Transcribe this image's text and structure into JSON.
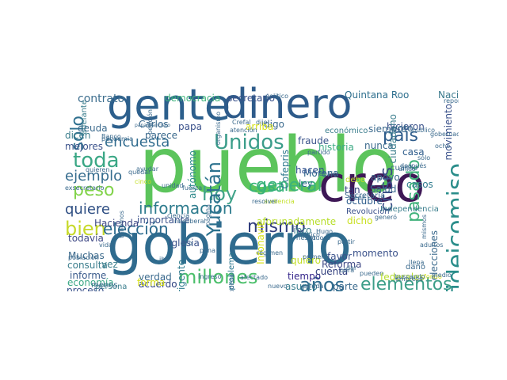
{
  "word_cloud": {
    "words": [
      {
        "id": "pueblo",
        "text": "pueblo",
        "color": "#5cc45c"
      },
      {
        "id": "gobierno",
        "text": "gobierno",
        "color": "#2f6b8e"
      },
      {
        "id": "gente",
        "text": "gente",
        "color": "#2c5f8c"
      },
      {
        "id": "dinero",
        "text": "dinero",
        "color": "#2e5b8a"
      },
      {
        "id": "creo",
        "text": "creo",
        "color": "#3e1856"
      },
      {
        "id": "fideicomiso",
        "text": "fideicomiso",
        "color": "#2a8d8a"
      },
      {
        "id": "millones",
        "text": "millones",
        "color": "#4bbf6b"
      },
      {
        "id": "toda",
        "text": "toda",
        "color": "#3aa785"
      },
      {
        "id": "peso",
        "text": "peso",
        "color": "#82d34b"
      },
      {
        "id": "Unidos",
        "text": "Unidos",
        "color": "#3b9d8a"
      },
      {
        "id": "encuesta",
        "text": "encuesta",
        "color": "#2f6b8e"
      },
      {
        "id": "ejemplo",
        "text": "ejemplo",
        "color": "#356c8e"
      },
      {
        "id": "quiere",
        "text": "quiere",
        "color": "#2e4e83"
      },
      {
        "id": "bien",
        "text": "bien",
        "color": "#c7d92a"
      },
      {
        "id": "eleccion",
        "text": "elección",
        "color": "#2c6b8e"
      },
      {
        "id": "informacion",
        "text": "información",
        "color": "#2f7c8e"
      },
      {
        "id": "hoy",
        "text": "hoy",
        "color": "#41a48a"
      },
      {
        "id": "mismo",
        "text": "mismo",
        "color": "#2f3c7c"
      },
      {
        "id": "general",
        "text": "general",
        "color": "#3bb37b"
      },
      {
        "id": "Yucatan",
        "text": "Yucatán",
        "color": "#2c728e"
      },
      {
        "id": "pais",
        "text": "país",
        "color": "#2f5d8c"
      },
      {
        "id": "crisis",
        "text": "crisis",
        "color": "#3a4a86"
      },
      {
        "id": "pasado",
        "text": "pasado",
        "color": "#40b27b"
      },
      {
        "id": "anos",
        "text": "años",
        "color": "#2f6b8e"
      },
      {
        "id": "elementos",
        "text": "elementos",
        "color": "#3c9e88"
      },
      {
        "id": "solo",
        "text": "solo",
        "color": "#2e6f8e"
      },
      {
        "id": "cosa",
        "text": "cosa",
        "color": "#35b279"
      },
      {
        "id": "hoja",
        "text": "hoja",
        "color": "#2d708e"
      },
      {
        "id": "contrato",
        "text": "contrato",
        "color": "#3d6e8e"
      },
      {
        "id": "democracia",
        "text": "democracia",
        "color": "#3fb47c"
      },
      {
        "id": "secretario",
        "text": "secretario",
        "color": "#3b528b"
      },
      {
        "id": "Morena",
        "text": "Morena",
        "color": "#31688e"
      },
      {
        "id": "QuintanaRoo",
        "text": "Quintana Roo",
        "color": "#2e6f8e"
      },
      {
        "id": "Nacional",
        "text": "Nacional",
        "color": "#3b7a8d"
      },
      {
        "id": "fraude",
        "text": "fraude",
        "color": "#3a538b"
      },
      {
        "id": "historia",
        "text": "historia",
        "color": "#3eaa85"
      },
      {
        "id": "Cofepris",
        "text": "Cofepris",
        "color": "#2f7a8e"
      },
      {
        "id": "autonomo",
        "text": "autónomo",
        "color": "#2f8b8c"
      },
      {
        "id": "Hacienda",
        "text": "Hacienda",
        "color": "#404a86"
      },
      {
        "id": "importante",
        "text": "importante",
        "color": "#3b528b"
      },
      {
        "id": "aforunadamente",
        "text": "aforunadamente",
        "color": "#b7de2a"
      },
      {
        "id": "todavia",
        "text": "todavía",
        "color": "#404a86"
      },
      {
        "id": "Iglesia",
        "text": "Iglesia",
        "color": "#3b528b"
      },
      {
        "id": "Muchas",
        "text": "Muchas",
        "color": "#3e6b8d"
      },
      {
        "id": "consulta",
        "text": "consulta",
        "color": "#3b7e8d"
      },
      {
        "id": "informe",
        "text": "informe",
        "color": "#3b5b8c"
      },
      {
        "id": "economia",
        "text": "economía",
        "color": "#3aa785"
      },
      {
        "id": "proceso",
        "text": "proceso",
        "color": "#3b528b"
      },
      {
        "id": "acuerdo",
        "text": "acuerdo",
        "color": "#2c3f7f"
      },
      {
        "id": "verdad",
        "text": "verdad",
        "color": "#3b6a8d"
      },
      {
        "id": "dirigente",
        "text": "dirigente",
        "color": "#2f7b8e"
      },
      {
        "id": "problema",
        "text": "problema",
        "color": "#2a768e"
      },
      {
        "id": "tiempo",
        "text": "tiempo",
        "color": "#34258a"
      },
      {
        "id": "asunto",
        "text": "asunto",
        "color": "#3a7e8e"
      },
      {
        "id": "cuenta",
        "text": "cuenta",
        "color": "#2f3c7c"
      },
      {
        "id": "Reforma",
        "text": "Reforma",
        "color": "#404a86"
      },
      {
        "id": "favor",
        "text": "favor",
        "color": "#3b528b"
      },
      {
        "id": "libro",
        "text": "libro",
        "color": "#3b7e8d"
      },
      {
        "id": "quiero",
        "text": "quiero",
        "color": "#c2df23"
      },
      {
        "id": "momento",
        "text": "momento",
        "color": "#3b528b"
      },
      {
        "id": "dicho",
        "text": "dicho",
        "color": "#c9e020"
      },
      {
        "id": "tan",
        "text": "tan",
        "color": "#2f3c7c"
      },
      {
        "id": "ley",
        "text": "ley",
        "color": "#2f6b8e"
      },
      {
        "id": "hacen",
        "text": "hacen",
        "color": "#2f4e8e"
      },
      {
        "id": "apoyo",
        "text": "apoyo",
        "color": "#3b6a8d"
      },
      {
        "id": "Salud",
        "text": "Salud",
        "color": "#3b6a8d"
      },
      {
        "id": "casos",
        "text": "casos",
        "color": "#2f7b8e"
      },
      {
        "id": "casa",
        "text": "casa",
        "color": "#2f5d8c"
      },
      {
        "id": "siempre",
        "text": "siempre",
        "color": "#3b6a8d"
      },
      {
        "id": "nunca",
        "text": "nunca",
        "color": "#3b6a8d"
      },
      {
        "id": "octubre",
        "text": "octubre",
        "color": "#2f5d8c"
      },
      {
        "id": "Secretaria",
        "text": "Secretaría",
        "color": "#3b6a8d"
      },
      {
        "id": "Revolucion",
        "text": "Revolución",
        "color": "#3b528b"
      },
      {
        "id": "vez",
        "text": "vez",
        "color": "#3b7e8d"
      },
      {
        "id": "menos",
        "text": "menos",
        "color": "#3b6a8d"
      },
      {
        "id": "persona",
        "text": "persona",
        "color": "#3b7e8d"
      },
      {
        "id": "dicen",
        "text": "dicen",
        "color": "#3b7e8d"
      },
      {
        "id": "mejores",
        "text": "mejores",
        "color": "#3b528b"
      },
      {
        "id": "deuda",
        "text": "deuda",
        "color": "#3b6a8d"
      },
      {
        "id": "Carlos",
        "text": "Carlos",
        "color": "#3b6a8d"
      },
      {
        "id": "papa",
        "text": "papa",
        "color": "#3b528b"
      },
      {
        "id": "parece",
        "text": "parece",
        "color": "#3b6a8d"
      },
      {
        "id": "forma",
        "text": "forma",
        "color": "#d8e219"
      },
      {
        "id": "digo",
        "text": "digo",
        "color": "#3b6a8d"
      },
      {
        "id": "movimiento",
        "text": "movimiento",
        "color": "#3b528b"
      },
      {
        "id": "ciudadano",
        "text": "ciudadano",
        "color": "#3b7e8d"
      },
      {
        "id": "hicieron",
        "text": "hicieron",
        "color": "#3b528b"
      },
      {
        "id": "economico",
        "text": "económico",
        "color": "#3b7e8d"
      },
      {
        "id": "arriba",
        "text": "arriba",
        "color": "#d8e219"
      },
      {
        "id": "voto",
        "text": "voto",
        "color": "#3b6a8d"
      },
      {
        "id": "cuanto",
        "text": "cuanto",
        "color": "#3b6a8d"
      },
      {
        "id": "elecciones",
        "text": "elecciones",
        "color": "#3b6a8d"
      },
      {
        "id": "parte",
        "text": "parte",
        "color": "#3b6a8d"
      },
      {
        "id": "debe",
        "text": "debe",
        "color": "#c2df23"
      },
      {
        "id": "federales",
        "text": "federales",
        "color": "#b7de2a"
      },
      {
        "id": "Infonavit",
        "text": "Infonavit",
        "color": "#d8e219"
      },
      {
        "id": "Independencia",
        "text": "Independencia",
        "color": "#3b7e8d"
      },
      {
        "id": "adelante",
        "text": "adelante",
        "color": "#3b7e8d"
      },
      {
        "id": "Banco",
        "text": "Banco",
        "color": "#3b6a8d"
      },
      {
        "id": "politico",
        "text": "politico",
        "color": "#3b6a8d"
      },
      {
        "id": "cinco",
        "text": "cinco",
        "color": "#c2df23"
      },
      {
        "id": "fuerza",
        "text": "fuerza",
        "color": "#3b6a8d"
      },
      {
        "id": "ayudar",
        "text": "ayudar",
        "color": "#3b6a8d"
      },
      {
        "id": "quieren",
        "text": "quieren",
        "color": "#3b6a8d"
      },
      {
        "id": "exsecretario",
        "text": "exsecretario",
        "color": "#3b6a8d"
      },
      {
        "id": "neoliberal",
        "text": "neoliberal",
        "color": "#3b6a8d"
      },
      {
        "id": "atencion",
        "text": "atención",
        "color": "#3b6a8d"
      },
      {
        "id": "primera",
        "text": "primera",
        "color": "#3b6a8d"
      },
      {
        "id": "cargo",
        "text": "cargo",
        "color": "#3b6a8d"
      },
      {
        "id": "hablando",
        "text": "hablando",
        "color": "#3b6a8d"
      },
      {
        "id": "autoridades",
        "text": "autoridades",
        "color": "#3b6a8d"
      },
      {
        "id": "nuevo",
        "text": "nuevo",
        "color": "#3b6a8d"
      },
      {
        "id": "partido",
        "text": "partido",
        "color": "#3b6a8d"
      },
      {
        "id": "audiencia",
        "text": "audiencia",
        "color": "#c2df23"
      },
      {
        "id": "resolver",
        "text": "resolver",
        "color": "#3b6a8d"
      },
      {
        "id": "riesgo",
        "text": "riesgo",
        "color": "#3b6a8d"
      },
      {
        "id": "gobernador",
        "text": "gobernador",
        "color": "#3b6a8d"
      },
      {
        "id": "publico",
        "text": "publico",
        "color": "#3b6a8d"
      },
      {
        "id": "reportero",
        "text": "reportero",
        "color": "#3b6a8d"
      },
      {
        "id": "despues",
        "text": "después",
        "color": "#3b6a8d"
      },
      {
        "id": "llena",
        "text": "llena",
        "color": "#3b6a8d"
      },
      {
        "id": "dano",
        "text": "daño",
        "color": "#3b6a8d"
      },
      {
        "id": "dar",
        "text": "dar",
        "color": "#3b6a8d"
      },
      {
        "id": "genero",
        "text": "generó",
        "color": "#3b6a8d"
      },
      {
        "id": "viene",
        "text": "viene",
        "color": "#3b6a8d"
      },
      {
        "id": "Hugo",
        "text": "Hugo",
        "color": "#3b6a8d"
      },
      {
        "id": "fondo",
        "text": "fondo",
        "color": "#d8e219"
      },
      {
        "id": "afectado",
        "text": "afectado",
        "color": "#3b6a8d"
      },
      {
        "id": "pueden",
        "text": "pueden",
        "color": "#3b6a8d"
      },
      {
        "id": "papaFrancisco",
        "text": "papa Francisco",
        "color": "#3b6a8d"
      },
      {
        "id": "regimen",
        "text": "régimen",
        "color": "#3b6a8d"
      },
      {
        "id": "periodista",
        "text": "periodista",
        "color": "#3b6a8d"
      },
      {
        "id": "poblacion",
        "text": "población",
        "color": "#3b6a8d"
      },
      {
        "id": "abajo",
        "text": "abajo",
        "color": "#3b6a8d"
      },
      {
        "id": "Crefal",
        "text": "Crefal",
        "color": "#3b6a8d"
      },
      {
        "id": "dijo",
        "text": "dijo",
        "color": "#3b6a8d"
      },
      {
        "id": "unidad",
        "text": "unidad",
        "color": "#3b6a8d"
      },
      {
        "id": "ocho",
        "text": "ocho",
        "color": "#3b6a8d"
      },
      {
        "id": "solo2",
        "text": "sólo",
        "color": "#3b6a8d"
      },
      {
        "id": "tenemos",
        "text": "tenemos",
        "color": "#3b6a8d"
      },
      {
        "id": "ciencia",
        "text": "ciencia",
        "color": "#3b6a8d"
      },
      {
        "id": "peticion",
        "text": "petición",
        "color": "#3b6a8d"
      },
      {
        "id": "pandemia",
        "text": "pandemia",
        "color": "#3b6a8d"
      },
      {
        "id": "virtuoso",
        "text": "virtuoso",
        "color": "#3b6a8d"
      },
      {
        "id": "obra",
        "text": "obra",
        "color": "#3b6a8d"
      },
      {
        "id": "buscando",
        "text": "buscando",
        "color": "#3b6a8d"
      },
      {
        "id": "pagina",
        "text": "página",
        "color": "#3b6a8d"
      },
      {
        "id": "organismo",
        "text": "organismo",
        "color": "#3b6a8d"
      },
      {
        "id": "ingreso",
        "text": "ingreso",
        "color": "#3b6a8d"
      },
      {
        "id": "vida",
        "text": "vida",
        "color": "#3b6a8d"
      },
      {
        "id": "ibe",
        "text": "ibe",
        "color": "#3b6a8d"
      },
      {
        "id": "pena",
        "text": "pena",
        "color": "#3b6a8d"
      },
      {
        "id": "rico",
        "text": "rico",
        "color": "#3b6a8d"
      },
      {
        "id": "partir",
        "text": "partir",
        "color": "#3b6a8d"
      },
      {
        "id": "saluda",
        "text": "saluda",
        "color": "#3b6a8d"
      },
      {
        "id": "medio",
        "text": "medio",
        "color": "#3b6a8d"
      },
      {
        "id": "quedar",
        "text": "quedar",
        "color": "#3b6a8d"
      },
      {
        "id": "empresa",
        "text": "empresa",
        "color": "#3b6a8d"
      },
      {
        "id": "adultos",
        "text": "adultos",
        "color": "#3b6a8d"
      },
      {
        "id": "Mexico",
        "text": "México",
        "color": "#3b6a8d"
      },
      {
        "id": "unico",
        "text": "único",
        "color": "#3b6a8d"
      },
      {
        "id": "mismos",
        "text": "mismos",
        "color": "#3b6a8d"
      }
    ]
  }
}
